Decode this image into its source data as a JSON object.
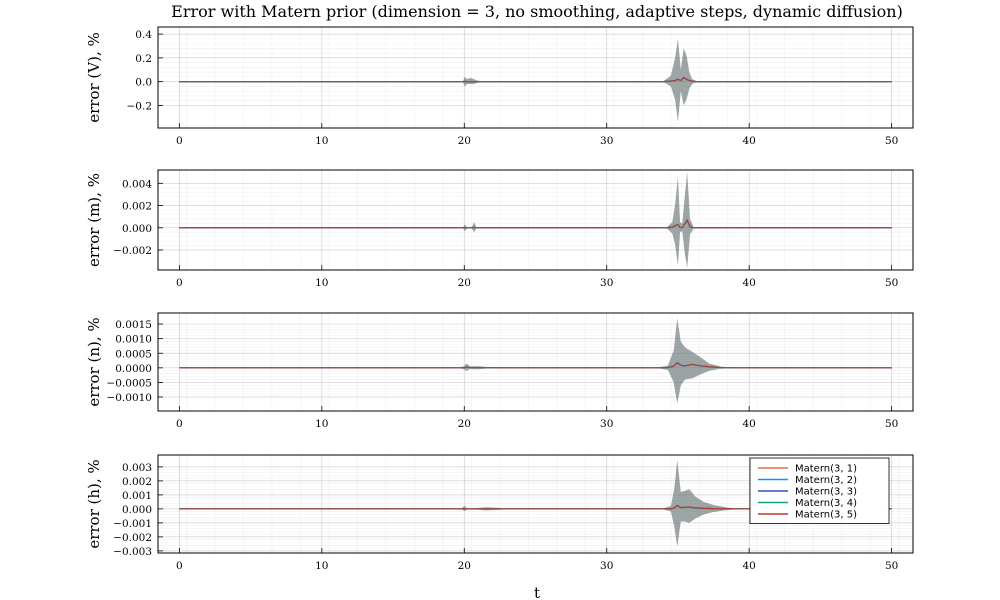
{
  "chart_data": {
    "type": "line",
    "title": "Error with Matern prior (dimension = 3, no smoothing, adaptive steps, dynamic diffusion)",
    "xlabel": "t",
    "xlim": [
      -1.5,
      51.5
    ],
    "xticks": [
      0,
      10,
      20,
      30,
      40,
      50
    ],
    "grid": true,
    "legend": {
      "placement": "inside right, bottom subplot",
      "entries": [
        {
          "name": "Matern(3, 1)",
          "color": "#e26f46"
        },
        {
          "name": "Matern(3, 2)",
          "color": "#009afa"
        },
        {
          "name": "Matern(3, 3)",
          "color": "#3b4cc0"
        },
        {
          "name": "Matern(3, 4)",
          "color": "#17a08a"
        },
        {
          "name": "Matern(3, 5)",
          "color": "#c0392b"
        }
      ]
    },
    "band_color": "#5b6b6b",
    "panels": [
      {
        "ylabel": "error (V), %",
        "ylim": [
          -0.39,
          0.46
        ],
        "yticks": [
          -0.2,
          0.0,
          0.2,
          0.4
        ],
        "ytick_labels": [
          "−0.2",
          "0.0",
          "0.2",
          "0.4"
        ],
        "x": [
          0,
          19.9,
          20.05,
          20.2,
          20.35,
          20.5,
          20.7,
          20.9,
          21.2,
          34.0,
          34.5,
          34.8,
          35.0,
          35.2,
          35.4,
          35.6,
          35.8,
          36.0,
          36.3,
          37.0,
          50
        ],
        "band_upper": [
          0.003,
          0.003,
          0.04,
          0.02,
          0.03,
          0.03,
          0.02,
          0.01,
          0.003,
          0.005,
          0.05,
          0.2,
          0.36,
          0.1,
          0.28,
          0.22,
          0.08,
          0.02,
          0.005,
          0.003,
          0.003
        ],
        "band_lower": [
          -0.003,
          -0.003,
          -0.04,
          -0.02,
          -0.02,
          -0.02,
          -0.02,
          -0.01,
          -0.003,
          -0.005,
          -0.04,
          -0.15,
          -0.34,
          -0.08,
          -0.2,
          -0.15,
          -0.06,
          -0.02,
          -0.005,
          -0.003,
          -0.003
        ],
        "mean": [
          0,
          0,
          0.002,
          0.001,
          0.001,
          0.0,
          0.0,
          0.0,
          0,
          0,
          0.005,
          0.01,
          0.02,
          0.01,
          0.035,
          0.02,
          0.01,
          0.005,
          0,
          0,
          0
        ]
      },
      {
        "ylabel": "error (m), %",
        "ylim": [
          -0.0038,
          0.0052
        ],
        "yticks": [
          -0.002,
          0.0,
          0.002,
          0.004
        ],
        "ytick_labels": [
          "−0.002",
          "0.000",
          "0.002",
          "0.004"
        ],
        "x": [
          0,
          19.9,
          20.05,
          20.2,
          20.5,
          20.7,
          20.85,
          21.0,
          34.2,
          34.6,
          34.8,
          35.0,
          35.15,
          35.3,
          35.5,
          35.65,
          35.85,
          36.1,
          50
        ],
        "band_upper": [
          2e-05,
          2e-05,
          0.0003,
          2e-05,
          2e-05,
          0.0005,
          2e-05,
          2e-05,
          3e-05,
          0.0005,
          0.0021,
          0.0046,
          0.0005,
          0.0004,
          0.0031,
          0.005,
          0.0008,
          5e-05,
          2e-05
        ],
        "band_lower": [
          -2e-05,
          -2e-05,
          -0.0003,
          -2e-05,
          -2e-05,
          -0.0004,
          -2e-05,
          -2e-05,
          -3e-05,
          -0.0005,
          -0.0015,
          -0.0034,
          -0.0004,
          -0.0003,
          -0.0025,
          -0.0036,
          -0.0006,
          -5e-05,
          -2e-05
        ],
        "mean": [
          0,
          0,
          2e-05,
          0,
          0,
          3e-05,
          0,
          0,
          0,
          5e-05,
          0.0002,
          0.0003,
          3e-05,
          2e-05,
          0.0004,
          0.0007,
          0.0001,
          0,
          0
        ]
      },
      {
        "ylabel": "error (n), %",
        "ylim": [
          -0.00148,
          0.00188
        ],
        "yticks": [
          -0.001,
          -0.0005,
          0.0,
          0.0005,
          0.001,
          0.0015
        ],
        "ytick_labels": [
          "−0.0010",
          "−0.0005",
          "0.0000",
          "0.0005",
          "0.0010",
          "0.0015"
        ],
        "x": [
          0,
          19.6,
          20.0,
          20.15,
          20.4,
          21.0,
          21.6,
          22.5,
          33.5,
          34.3,
          34.7,
          34.95,
          35.2,
          35.5,
          36.0,
          36.6,
          37.2,
          38.0,
          39.0,
          50
        ],
        "band_upper": [
          2e-06,
          2e-06,
          6e-05,
          0.00015,
          5e-05,
          6e-05,
          3e-05,
          2e-06,
          5e-06,
          8e-05,
          0.0006,
          0.0017,
          0.0009,
          0.0007,
          0.00055,
          0.00036,
          0.00015,
          4e-05,
          4e-06,
          2e-06
        ],
        "band_lower": [
          -2e-06,
          -2e-06,
          -5e-05,
          -0.00011,
          -4e-05,
          -5e-05,
          -2e-05,
          -2e-06,
          -5e-06,
          -7e-05,
          -0.0005,
          -0.00122,
          -0.0006,
          -0.0004,
          -0.00036,
          -0.00022,
          -0.0001,
          -3e-05,
          -4e-06,
          -2e-06
        ],
        "mean": [
          0,
          0,
          5e-06,
          2e-05,
          1e-05,
          1e-05,
          5e-06,
          0,
          0,
          1e-05,
          6e-05,
          0.00018,
          9e-05,
          7e-05,
          0.00012,
          7e-05,
          4e-05,
          1e-05,
          0,
          0
        ]
      },
      {
        "ylabel": "error (h), %",
        "ylim": [
          -0.00315,
          0.00385
        ],
        "yticks": [
          -0.003,
          -0.002,
          -0.001,
          0.0,
          0.001,
          0.002,
          0.003
        ],
        "ytick_labels": [
          "−0.003",
          "−0.002",
          "−0.001",
          "0.000",
          "0.001",
          "0.002",
          "0.003"
        ],
        "x": [
          0,
          19.7,
          20.05,
          20.2,
          20.5,
          21.0,
          21.5,
          22.3,
          23.5,
          33.8,
          34.5,
          34.75,
          34.95,
          35.2,
          35.5,
          35.8,
          36.2,
          36.8,
          37.5,
          38.5,
          39.5,
          50
        ],
        "band_upper": [
          5e-06,
          5e-06,
          0.0002,
          4e-05,
          5e-05,
          7e-05,
          0.00012,
          8e-05,
          5e-06,
          5e-06,
          0.0002,
          0.0015,
          0.0035,
          0.0012,
          0.0013,
          0.0014,
          0.0009,
          0.0005,
          0.00028,
          9e-05,
          5e-06,
          5e-06
        ],
        "band_lower": [
          -5e-06,
          -5e-06,
          -0.00015,
          -4e-05,
          -5e-05,
          -6e-05,
          -0.00011,
          -7e-05,
          -5e-06,
          -5e-06,
          -0.00018,
          -0.0013,
          -0.0027,
          -0.0009,
          -0.0009,
          -0.001,
          -0.0007,
          -0.0004,
          -0.00022,
          -8e-05,
          -5e-06,
          -5e-06
        ],
        "mean": [
          0,
          0,
          1e-05,
          0,
          0,
          0,
          5e-06,
          0,
          0,
          0,
          1e-05,
          8e-05,
          0.00025,
          0.0001,
          0.00012,
          0.00014,
          8e-05,
          4e-05,
          2e-05,
          1e-05,
          0,
          0
        ]
      }
    ]
  }
}
